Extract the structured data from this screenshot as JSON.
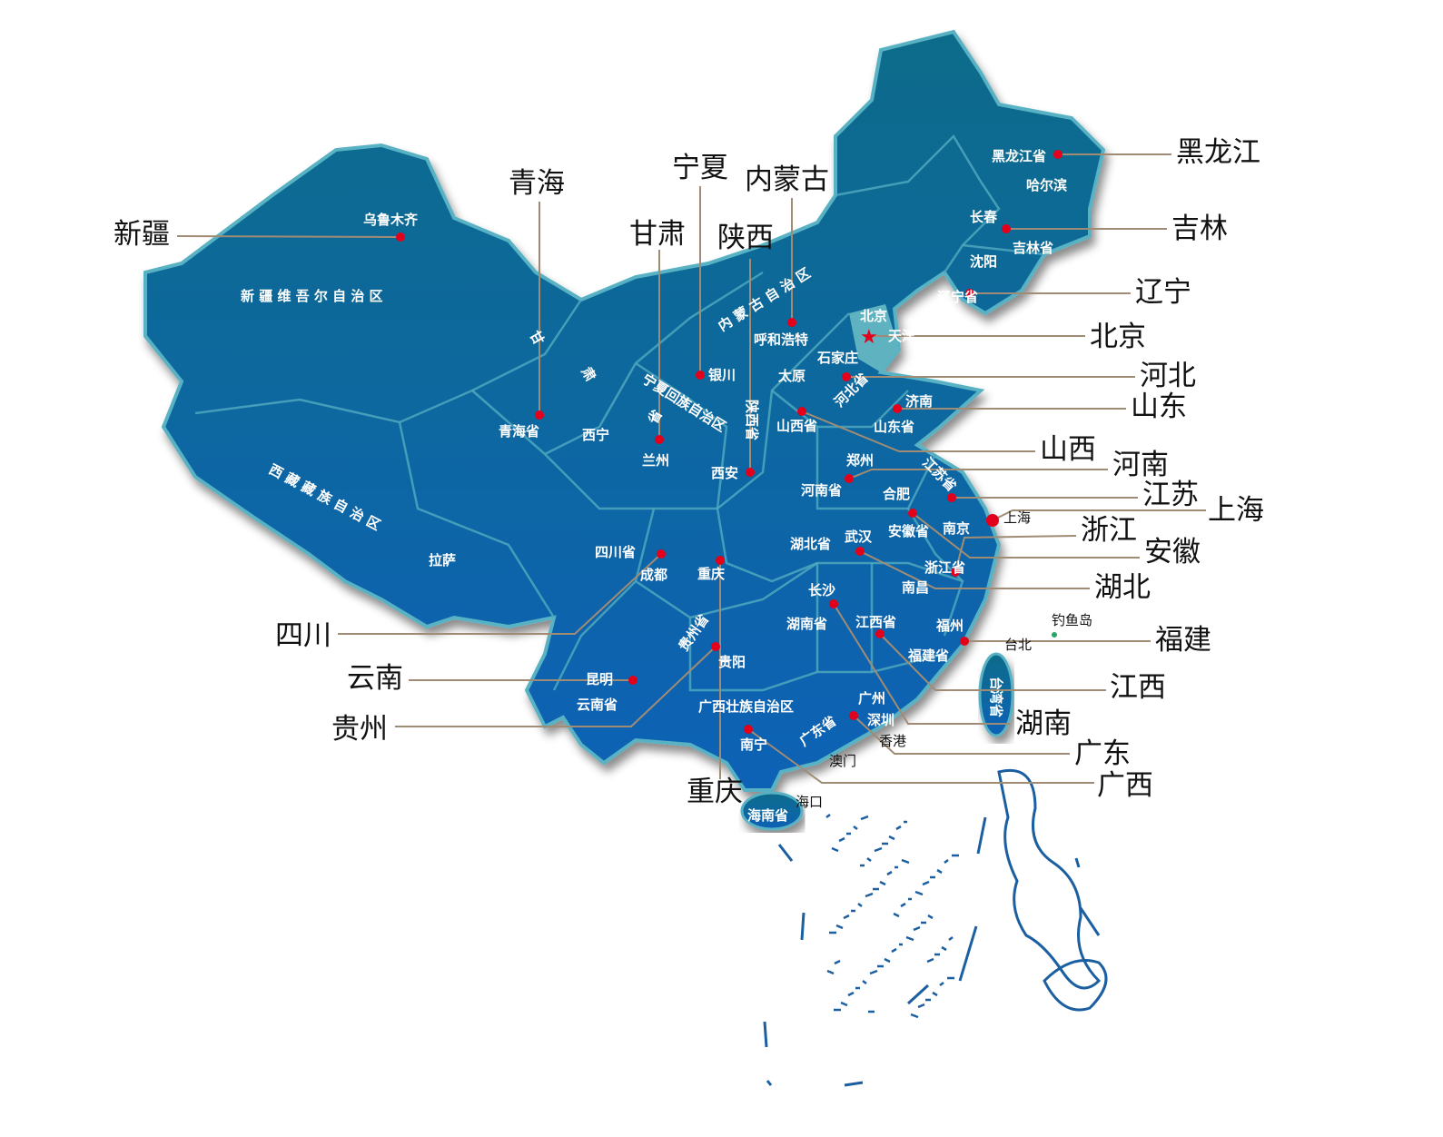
{
  "map": {
    "colors": {
      "land_top": "#0e6c8a",
      "land_bottom": "#0862b6",
      "border": "#4fa7bd",
      "dot": "#e3001b",
      "leader": "#a08c74",
      "highlight_label": "#f07a10"
    },
    "callouts": [
      {
        "label": "黑龙江",
        "highlight": true
      },
      {
        "label": "吉林"
      },
      {
        "label": "辽宁"
      },
      {
        "label": "北京"
      },
      {
        "label": "河北"
      },
      {
        "label": "山东"
      },
      {
        "label": "山西"
      },
      {
        "label": "河南"
      },
      {
        "label": "江苏"
      },
      {
        "label": "上海"
      },
      {
        "label": "浙江"
      },
      {
        "label": "安徽"
      },
      {
        "label": "湖北"
      },
      {
        "label": "福建"
      },
      {
        "label": "江西"
      },
      {
        "label": "湖南"
      },
      {
        "label": "广东"
      },
      {
        "label": "广西"
      },
      {
        "label": "重庆"
      },
      {
        "label": "贵州"
      },
      {
        "label": "云南"
      },
      {
        "label": "四川"
      },
      {
        "label": "新疆"
      },
      {
        "label": "青海"
      },
      {
        "label": "甘肃"
      },
      {
        "label": "宁夏"
      },
      {
        "label": "陕西"
      },
      {
        "label": "内蒙古"
      }
    ],
    "place_labels": [
      "乌鲁木齐",
      "新 疆 维 吾 尔 自 治 区",
      "西 藏 藏 族 自 治 区",
      "拉萨",
      "甘",
      "肃",
      "青海省",
      "西宁",
      "兰州",
      "省",
      "宁夏回族自治区",
      "银川",
      "内 蒙 古 自 治 区",
      "呼和浩特",
      "太原",
      "石家庄",
      "北京",
      "天津",
      "河北省",
      "济南",
      "山东省",
      "山西省",
      "陕西省",
      "郑州",
      "河南省",
      "江苏省",
      "合肥",
      "安徽省",
      "南京",
      "上海",
      "西安",
      "四川省",
      "成都",
      "重庆",
      "湖北省",
      "武汉",
      "浙江省",
      "南昌",
      "长沙",
      "湖南省",
      "江西省",
      "福州",
      "福建省",
      "台北",
      "钓鱼岛",
      "台湾省",
      "贵州省",
      "贵阳",
      "昆明",
      "云南省",
      "广西壮族自治区",
      "广州",
      "深圳",
      "广东省",
      "南宁",
      "香港",
      "澳门",
      "海口",
      "海南省",
      "黑龙江省",
      "哈尔滨",
      "长春",
      "吉林省",
      "沈阳",
      "辽宁省"
    ]
  }
}
